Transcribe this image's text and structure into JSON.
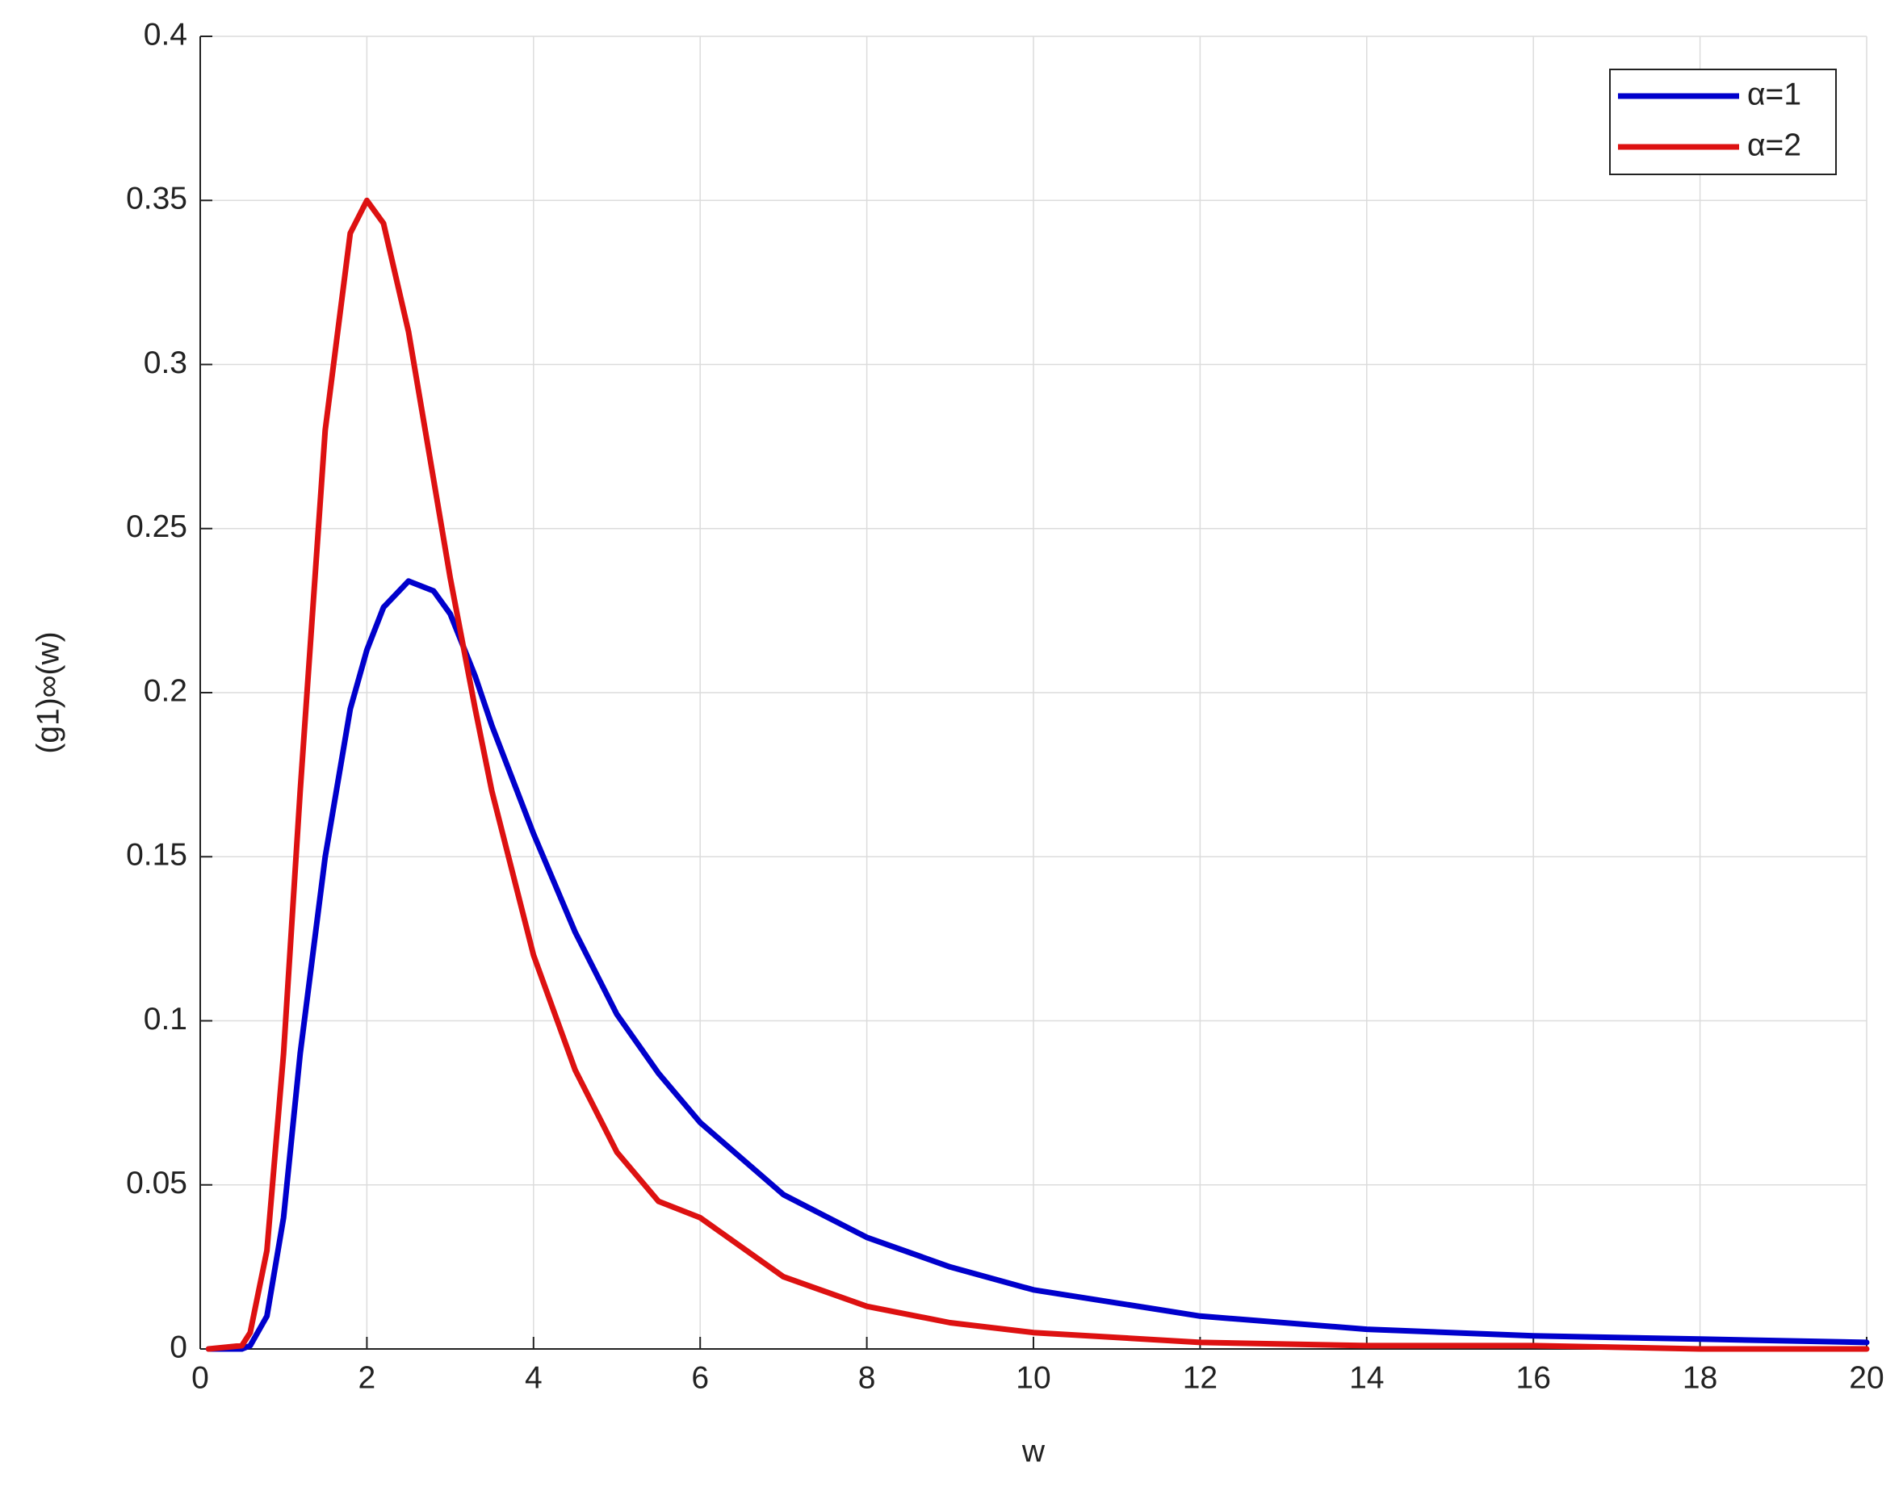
{
  "chart_data": {
    "type": "line",
    "x_label": "w",
    "y_label": "(g1)∞(w)",
    "x": [
      0.1,
      0.5,
      0.6,
      0.8,
      1,
      1.2,
      1.5,
      1.8,
      2,
      2.2,
      2.5,
      2.8,
      3,
      3.3,
      3.5,
      4,
      4.5,
      5,
      5.5,
      6,
      7,
      8,
      9,
      10,
      12,
      14,
      16,
      18,
      20
    ],
    "series": [
      {
        "name": "α=1",
        "color": "#0000cc",
        "values": [
          0,
          0,
          0.001,
          0.01,
          0.04,
          0.09,
          0.15,
          0.195,
          0.213,
          0.226,
          0.234,
          0.231,
          0.224,
          0.205,
          0.19,
          0.157,
          0.127,
          0.102,
          0.084,
          0.069,
          0.047,
          0.034,
          0.025,
          0.018,
          0.01,
          0.006,
          0.004,
          0.003,
          0.002
        ]
      },
      {
        "name": "α=2",
        "color": "#dd1111",
        "values": [
          0,
          0.001,
          0.005,
          0.03,
          0.09,
          0.17,
          0.28,
          0.34,
          0.35,
          0.343,
          0.31,
          0.265,
          0.235,
          0.195,
          0.17,
          0.12,
          0.085,
          0.06,
          0.045,
          0.04,
          0.022,
          0.013,
          0.008,
          0.005,
          0.002,
          0.001,
          0.001,
          0,
          0
        ]
      }
    ],
    "xlim": [
      0,
      20
    ],
    "xticks": [
      0,
      2,
      4,
      6,
      8,
      10,
      12,
      14,
      16,
      18,
      20
    ],
    "ylim": [
      0,
      0.4
    ],
    "yticks": [
      0,
      0.05,
      0.1,
      0.15,
      0.2,
      0.25,
      0.3,
      0.35,
      0.4
    ],
    "grid": true,
    "legend": "upper right"
  }
}
